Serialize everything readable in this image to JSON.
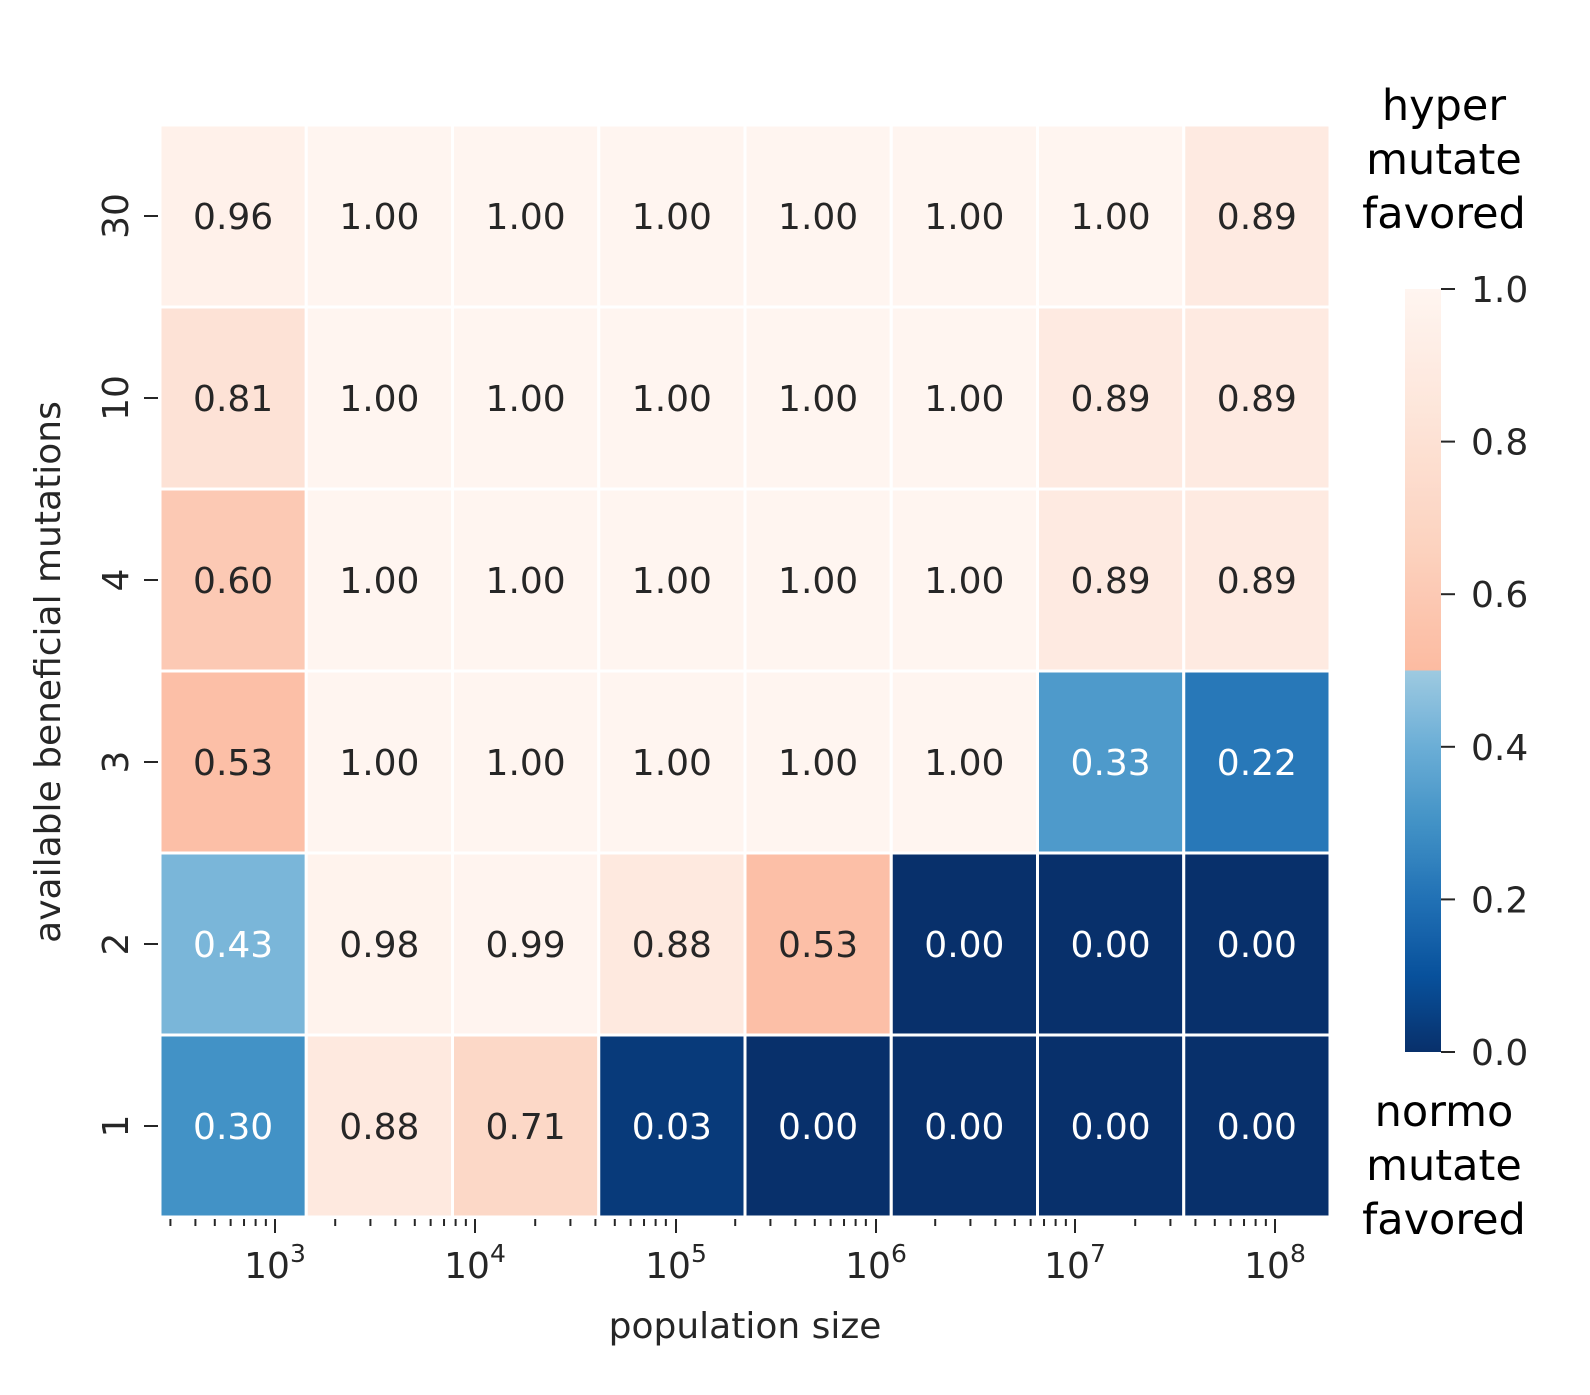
{
  "chart_data": {
    "type": "heatmap",
    "title": "",
    "xlabel": "population size",
    "ylabel": "available beneficial mutations",
    "x_scale": "log",
    "x_tick_labels": [
      {
        "base": "10",
        "exp": "3"
      },
      {
        "base": "10",
        "exp": "4"
      },
      {
        "base": "10",
        "exp": "5"
      },
      {
        "base": "10",
        "exp": "6"
      },
      {
        "base": "10",
        "exp": "7"
      },
      {
        "base": "10",
        "exp": "8"
      }
    ],
    "rows": [
      "30",
      "10",
      "4",
      "3",
      "2",
      "1"
    ],
    "values": [
      [
        0.96,
        1.0,
        1.0,
        1.0,
        1.0,
        1.0,
        1.0,
        0.89
      ],
      [
        0.81,
        1.0,
        1.0,
        1.0,
        1.0,
        1.0,
        0.89,
        0.89
      ],
      [
        0.6,
        1.0,
        1.0,
        1.0,
        1.0,
        1.0,
        0.89,
        0.89
      ],
      [
        0.53,
        1.0,
        1.0,
        1.0,
        1.0,
        1.0,
        0.33,
        0.22
      ],
      [
        0.43,
        0.98,
        0.99,
        0.88,
        0.53,
        0.0,
        0.0,
        0.0
      ],
      [
        0.3,
        0.88,
        0.71,
        0.03,
        0.0,
        0.0,
        0.0,
        0.0
      ]
    ],
    "value_format": "2 decimals",
    "colorbar": {
      "range": [
        0.0,
        1.0
      ],
      "ticks": [
        "0.0",
        "0.2",
        "0.4",
        "0.6",
        "0.8",
        "1.0"
      ],
      "top_label": [
        "hyper",
        "mutate",
        "favored"
      ],
      "bottom_label": [
        "normo",
        "mutate",
        "favored"
      ],
      "split": 0.5,
      "low_colors": [
        "#08306b",
        "#08519c",
        "#2171b5",
        "#4292c6",
        "#6baed6",
        "#9ecae1"
      ],
      "high_colors": [
        "#fcbba1",
        "#fcd3c0",
        "#fde5d9",
        "#fff5f0"
      ]
    },
    "grid": false,
    "cell_gap_color": "#ffffff",
    "text_color_dark": "#262626",
    "text_color_light": "#ffffff"
  }
}
